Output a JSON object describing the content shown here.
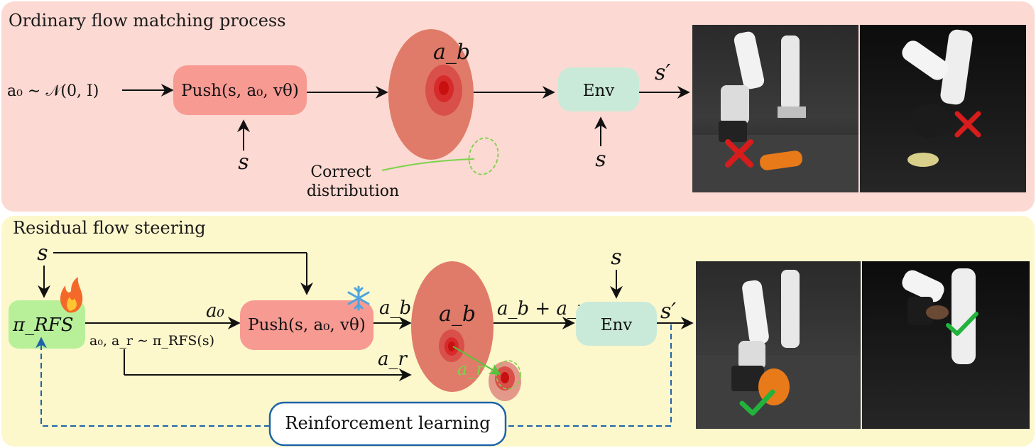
{
  "top": {
    "title": "Ordinary flow matching process",
    "input": "a₀ ∼ 𝒩(0, I)",
    "push_label": "Push(s, a₀, vθ)",
    "state_below_push": "s",
    "dist_label": "a_b",
    "env_label": "Env",
    "state_below_env": "s",
    "next_state": "s′",
    "correct_line1": "Correct",
    "correct_line2": "distribution"
  },
  "bottom": {
    "title": "Residual flow steering",
    "state_top": "s",
    "policy_label": "π_RFS",
    "sample_label": "a₀, a_r ∼ π_RFS(s)",
    "a0_label": "a₀",
    "push_label": "Push(s, a₀, vθ)",
    "ab_edge": "a_b",
    "dist_label": "a_b",
    "ar_edge": "a_r",
    "ar_arrow_label": "a_r",
    "sum_label": "a_b + a_r",
    "env_label": "Env",
    "state_above_env": "s",
    "next_state": "s′",
    "rl_label": "Reinforcement learning"
  },
  "colors": {
    "top_bg": "#fcd9d2",
    "bottom_bg": "#fdf7cc",
    "push_box": "#f79a92",
    "env_box": "#c9ead9",
    "policy_box": "#b8f09a",
    "rl_border": "#1e63a8",
    "dashed": "#1e63a8",
    "green": "#7bd24a"
  },
  "icons": [
    "fire-icon",
    "snowflake-icon",
    "cross-icon",
    "check-icon",
    "robot-arm-icon"
  ]
}
